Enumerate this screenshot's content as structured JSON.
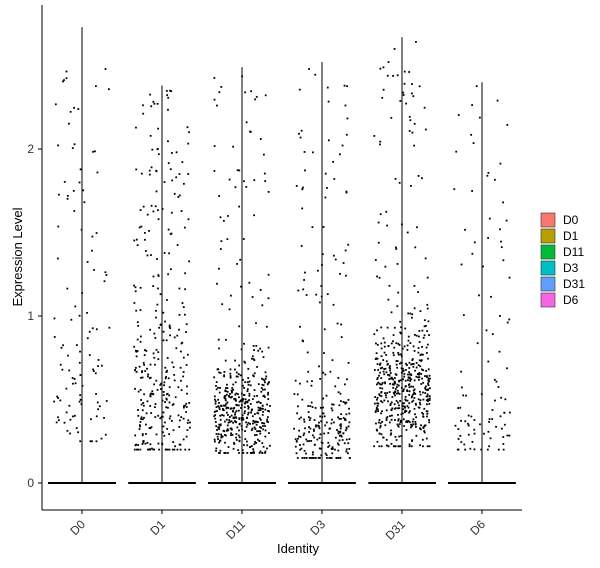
{
  "chart_data": {
    "type": "scatter",
    "subtype": "violin-jitter",
    "title": "",
    "xlabel": "Identity",
    "ylabel": "Expression Level",
    "categories": [
      "D0",
      "D1",
      "D11",
      "D3",
      "D31",
      "D6"
    ],
    "ylim": [
      -0.15,
      2.8
    ],
    "yticks": [
      0,
      1,
      2
    ],
    "grid": false,
    "legend_position": "right",
    "violin_max": [
      2.73,
      2.38,
      2.49,
      2.52,
      2.67,
      2.4
    ],
    "colors": [
      "#F8766D",
      "#B79F00",
      "#00BA38",
      "#00BFC4",
      "#619CFF",
      "#F564E3"
    ],
    "series": [
      {
        "name": "D0",
        "color": "#F8766D",
        "n_zero": 700,
        "n_nonzero": 110,
        "dist": {
          "low": 0.25,
          "high": 2.5,
          "bulk_mean": 0.55,
          "bulk_sd": 0.25,
          "bulk_frac": 0.45
        }
      },
      {
        "name": "D1",
        "color": "#B79F00",
        "n_zero": 700,
        "n_nonzero": 330,
        "dist": {
          "low": 0.2,
          "high": 2.35,
          "bulk_mean": 0.5,
          "bulk_sd": 0.25,
          "bulk_frac": 0.45
        }
      },
      {
        "name": "D11",
        "color": "#00BA38",
        "n_zero": 700,
        "n_nonzero": 450,
        "dist": {
          "low": 0.18,
          "high": 2.45,
          "bulk_mean": 0.42,
          "bulk_sd": 0.15,
          "bulk_frac": 0.8
        }
      },
      {
        "name": "D3",
        "color": "#00BFC4",
        "n_zero": 700,
        "n_nonzero": 260,
        "dist": {
          "low": 0.15,
          "high": 2.5,
          "bulk_mean": 0.3,
          "bulk_sd": 0.12,
          "bulk_frac": 0.7
        }
      },
      {
        "name": "D31",
        "color": "#619CFF",
        "n_zero": 700,
        "n_nonzero": 520,
        "dist": {
          "low": 0.22,
          "high": 2.65,
          "bulk_mean": 0.55,
          "bulk_sd": 0.18,
          "bulk_frac": 0.8
        }
      },
      {
        "name": "D6",
        "color": "#F564E3",
        "n_zero": 700,
        "n_nonzero": 100,
        "dist": {
          "low": 0.2,
          "high": 2.38,
          "bulk_mean": 0.38,
          "bulk_sd": 0.15,
          "bulk_frac": 0.55
        }
      }
    ]
  }
}
